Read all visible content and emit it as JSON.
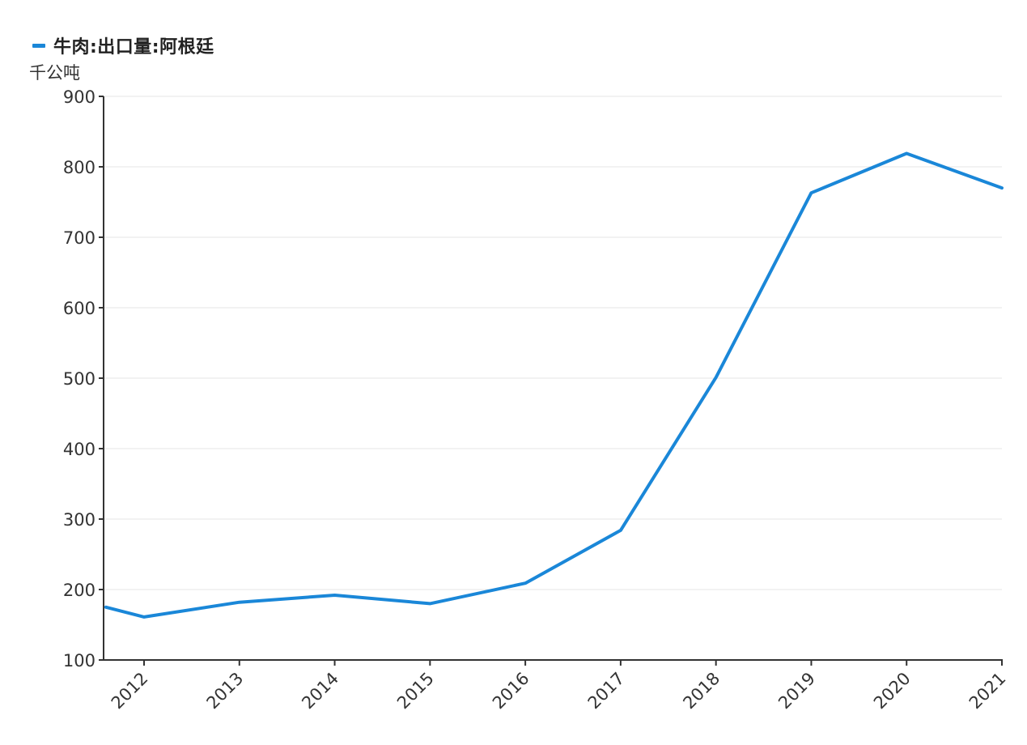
{
  "legend": {
    "series_name": "牛肉:出口量:阿根廷"
  },
  "unit_label": "千公吨",
  "colors": {
    "series": "#1a87d8",
    "axis": "#333333",
    "grid": "#e6e6e6"
  },
  "chart_data": {
    "type": "line",
    "title": "",
    "xlabel": "",
    "ylabel": "千公吨",
    "x": [
      "2011.6",
      "2012",
      "2013",
      "2014",
      "2015",
      "2016",
      "2017",
      "2018",
      "2019",
      "2020",
      "2021"
    ],
    "x_tick_labels": [
      "2012",
      "2013",
      "2014",
      "2015",
      "2016",
      "2017",
      "2018",
      "2019",
      "2020",
      "2021"
    ],
    "ylim": [
      100,
      900
    ],
    "y_ticks": [
      100,
      200,
      300,
      400,
      500,
      600,
      700,
      800,
      900
    ],
    "grid": true,
    "legend_position": "top-left",
    "series": [
      {
        "name": "牛肉:出口量:阿根廷",
        "x": [
          2011.6,
          2012,
          2013,
          2014,
          2015,
          2016,
          2017,
          2018,
          2019,
          2020,
          2021
        ],
        "values": [
          175,
          161,
          182,
          192,
          180,
          209,
          284,
          501,
          763,
          819,
          770
        ]
      }
    ]
  }
}
